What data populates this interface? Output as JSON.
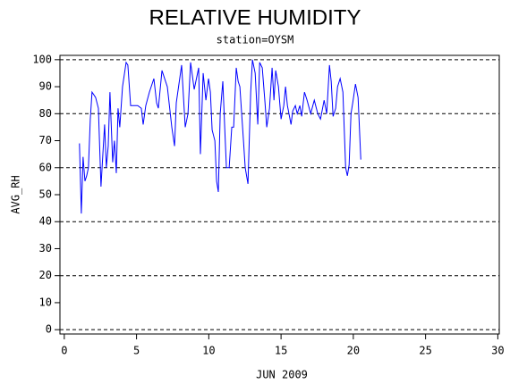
{
  "chart_data": {
    "type": "line",
    "title": "RELATIVE HUMIDITY",
    "subtitle": "station=OYSM",
    "x_label": "JUN 2009",
    "y_label": "AVG_RH",
    "xlim": [
      -0.3,
      30.1
    ],
    "ylim": [
      -1.6,
      101.6
    ],
    "xticks": [
      0,
      5,
      10,
      15,
      20,
      25,
      30
    ],
    "yticks": [
      0,
      10,
      20,
      30,
      40,
      50,
      60,
      70,
      80,
      90,
      100
    ],
    "ygrid": [
      0,
      20,
      40,
      60,
      80,
      100
    ],
    "x": [
      1.05,
      1.18,
      1.3,
      1.43,
      1.55,
      1.67,
      1.8,
      1.92,
      2.17,
      2.36,
      2.54,
      2.67,
      2.79,
      2.91,
      3.04,
      3.16,
      3.35,
      3.47,
      3.6,
      3.72,
      3.84,
      4.03,
      4.28,
      4.4,
      4.59,
      4.84,
      5.08,
      5.33,
      5.46,
      5.64,
      5.89,
      6.2,
      6.39,
      6.51,
      6.76,
      7.13,
      7.44,
      7.63,
      7.75,
      8.12,
      8.37,
      8.56,
      8.74,
      8.99,
      9.3,
      9.42,
      9.61,
      9.8,
      9.98,
      10.11,
      10.23,
      10.42,
      10.54,
      10.66,
      10.79,
      10.97,
      11.1,
      11.22,
      11.41,
      11.59,
      11.72,
      11.9,
      12.03,
      12.15,
      12.4,
      12.52,
      12.71,
      12.9,
      13.02,
      13.21,
      13.39,
      13.52,
      13.7,
      13.89,
      14.01,
      14.2,
      14.38,
      14.51,
      14.63,
      14.82,
      15.0,
      15.19,
      15.31,
      15.44,
      15.69,
      15.81,
      15.99,
      16.12,
      16.3,
      16.43,
      16.62,
      16.8,
      17.05,
      17.3,
      17.54,
      17.73,
      17.98,
      18.16,
      18.35,
      18.47,
      18.6,
      18.78,
      18.91,
      19.09,
      19.28,
      19.47,
      19.59,
      19.71,
      19.84,
      19.96,
      20.15,
      20.33,
      20.52
    ],
    "series": [
      {
        "name": "AVG_RH",
        "color": "#0000ff",
        "values": [
          69,
          43,
          64,
          55,
          57,
          60,
          78,
          88,
          86,
          82,
          53,
          65,
          76,
          60,
          68,
          88,
          62,
          70,
          58,
          82,
          75,
          90,
          99,
          98,
          83,
          83,
          83,
          82,
          76,
          83,
          88,
          93,
          84,
          82,
          96,
          90,
          75,
          68,
          84,
          98,
          75,
          80,
          99,
          89,
          97,
          65,
          95,
          85,
          93,
          88,
          74,
          70,
          55,
          51,
          80,
          92,
          75,
          60,
          60,
          75,
          75,
          97,
          92,
          90,
          70,
          60,
          54,
          88,
          100,
          95,
          76,
          99,
          97,
          84,
          75,
          82,
          97,
          85,
          96,
          90,
          78,
          83,
          90,
          83,
          76,
          81,
          83,
          80,
          83,
          79,
          88,
          85,
          80,
          85,
          80,
          78,
          85,
          80,
          98,
          92,
          79,
          82,
          90,
          93,
          88,
          60,
          57,
          61,
          80,
          84,
          91,
          86,
          63
        ]
      }
    ]
  }
}
